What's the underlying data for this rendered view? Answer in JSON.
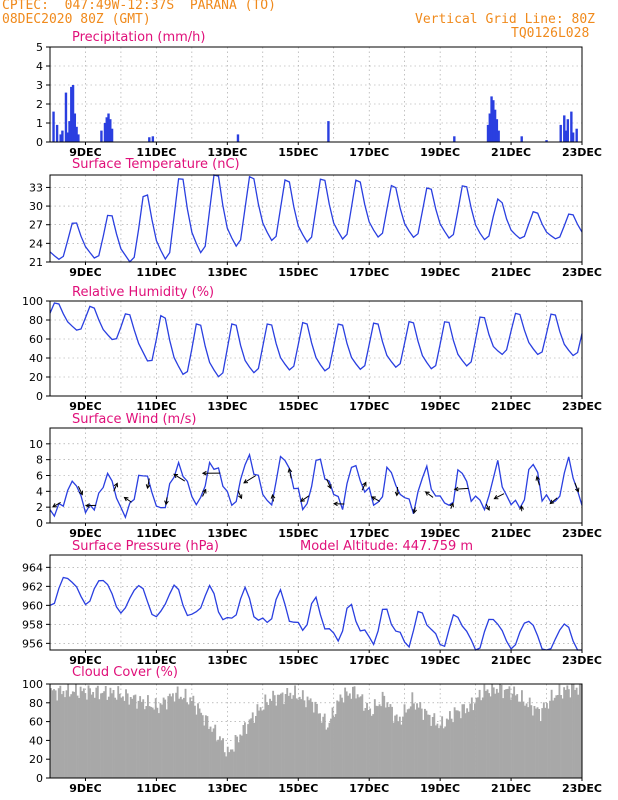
{
  "header": {
    "line1": "CPTEC:  047:49W-12:37S  PARANA (TO)",
    "line2": "08DEC2020 80Z (GMT)",
    "grid_note": "Vertical Grid Line: 80Z",
    "code": "TQ0126L028"
  },
  "colors": {
    "header": "#f08a1c",
    "title": "#e0107a",
    "line": "#2a3fe0",
    "cloud": "#a8a8a8",
    "grid": "#9a9a9a"
  },
  "x_ticks": [
    "9DEC",
    "11DEC",
    "13DEC",
    "15DEC",
    "17DEC",
    "19DEC",
    "21DEC",
    "23DEC"
  ],
  "chart_data": [
    {
      "type": "bar",
      "title": "Precipitation (mm/h)",
      "ylim": [
        0,
        5
      ],
      "yticks": [
        0,
        1,
        2,
        3,
        4,
        5
      ],
      "x_range_days": [
        8.0,
        23.0
      ],
      "bars": [
        [
          8.1,
          1.6
        ],
        [
          8.2,
          0.9
        ],
        [
          8.3,
          0.4
        ],
        [
          8.35,
          0.6
        ],
        [
          8.45,
          2.6
        ],
        [
          8.5,
          0.5
        ],
        [
          8.55,
          1.1
        ],
        [
          8.6,
          2.9
        ],
        [
          8.65,
          3.0
        ],
        [
          8.7,
          1.5
        ],
        [
          8.75,
          0.8
        ],
        [
          8.8,
          0.4
        ],
        [
          9.45,
          0.6
        ],
        [
          9.55,
          1.0
        ],
        [
          9.6,
          1.3
        ],
        [
          9.65,
          1.5
        ],
        [
          9.7,
          1.2
        ],
        [
          9.75,
          0.7
        ],
        [
          10.8,
          0.25
        ],
        [
          10.9,
          0.3
        ],
        [
          13.3,
          0.4
        ],
        [
          15.85,
          1.1
        ],
        [
          19.4,
          0.3
        ],
        [
          20.35,
          0.9
        ],
        [
          20.4,
          1.5
        ],
        [
          20.45,
          2.4
        ],
        [
          20.5,
          2.2
        ],
        [
          20.55,
          1.7
        ],
        [
          20.6,
          1.2
        ],
        [
          20.65,
          0.6
        ],
        [
          21.3,
          0.3
        ],
        [
          22.0,
          0.1
        ],
        [
          22.4,
          0.9
        ],
        [
          22.5,
          1.4
        ],
        [
          22.55,
          0.6
        ],
        [
          22.6,
          1.2
        ],
        [
          22.7,
          1.6
        ],
        [
          22.75,
          0.5
        ],
        [
          22.85,
          0.7
        ]
      ]
    },
    {
      "type": "line",
      "title": "Surface Temperature (nC)",
      "ylim": [
        21,
        35
      ],
      "yticks": [
        21,
        24,
        27,
        30,
        33
      ],
      "x_range_days": [
        8.0,
        23.0
      ],
      "amplitude": [
        2.5,
        3,
        4,
        6,
        6.5,
        6,
        5,
        5,
        5,
        4.5,
        4,
        4,
        4.5,
        2.5,
        2,
        2
      ],
      "mean": [
        23.5,
        24.5,
        24.5,
        26.5,
        28,
        28.5,
        29,
        28.5,
        29,
        29,
        28.5,
        28.5,
        28.5,
        27,
        26.5,
        26.5
      ],
      "peak_hour": 17
    },
    {
      "type": "line",
      "title": "Relative Humidity (%)",
      "ylim": [
        0,
        100
      ],
      "yticks": [
        0,
        20,
        40,
        60,
        80,
        100
      ],
      "x_range_days": [
        8.0,
        23.0
      ],
      "amplitude": [
        12,
        14,
        15,
        28,
        28,
        28,
        25,
        25,
        25,
        24,
        24,
        25,
        25,
        20,
        22,
        22
      ],
      "mean": [
        85,
        80,
        70,
        55,
        45,
        45,
        48,
        50,
        48,
        50,
        52,
        50,
        55,
        65,
        62,
        62
      ],
      "peak_hour": 5
    },
    {
      "type": "line",
      "title": "Surface Wind (m/s)",
      "ylim": [
        0,
        12
      ],
      "yticks": [
        0,
        2,
        4,
        6,
        8,
        10
      ],
      "x_range_days": [
        8.0,
        23.0
      ],
      "amplitude": [
        1.5,
        2,
        2.5,
        2.5,
        2.5,
        2.5,
        3,
        3,
        2.5,
        2,
        2,
        2,
        2,
        2.5,
        2.5,
        2.5
      ],
      "mean": [
        2.5,
        3.5,
        3.5,
        4,
        5,
        5,
        5.5,
        5,
        5,
        4.5,
        4,
        4,
        4,
        4,
        4.5,
        4.5
      ],
      "peak_hour": 15
    },
    {
      "type": "line",
      "title": "Surface Pressure (hPa)",
      "subtitle": "Model Altitude: 447.759 m",
      "ylim": [
        955.3,
        965.3
      ],
      "yticks": [
        956,
        958,
        960,
        962,
        964
      ],
      "x_range_days": [
        8.0,
        23.0
      ],
      "amplitude": [
        1.3,
        1.5,
        1.5,
        1.6,
        1.6,
        1.6,
        1.6,
        1.6,
        1.6,
        1.6,
        1.6,
        1.6,
        1.6,
        1.6,
        1.6,
        1.6
      ],
      "mean": [
        961.5,
        961.8,
        960.8,
        960.3,
        960.3,
        959.7,
        959.5,
        959.0,
        958.0,
        957.8,
        957.5,
        957.5,
        957.0,
        957.2,
        956.5,
        956.3
      ],
      "peak_hour": 12
    },
    {
      "type": "area",
      "title": "Cloud Cover (%)",
      "ylim": [
        0,
        100
      ],
      "yticks": [
        0,
        20,
        40,
        60,
        80,
        100
      ],
      "x_range_days": [
        8.0,
        23.0
      ],
      "profile": [
        [
          8.0,
          92
        ],
        [
          9.0,
          92
        ],
        [
          9.8,
          90
        ],
        [
          10.3,
          85
        ],
        [
          11.0,
          75
        ],
        [
          11.5,
          90
        ],
        [
          12.0,
          82
        ],
        [
          12.4,
          60
        ],
        [
          12.8,
          40
        ],
        [
          13.0,
          25
        ],
        [
          13.4,
          50
        ],
        [
          13.8,
          70
        ],
        [
          14.2,
          85
        ],
        [
          14.8,
          90
        ],
        [
          15.4,
          80
        ],
        [
          15.8,
          55
        ],
        [
          16.2,
          88
        ],
        [
          16.6,
          92
        ],
        [
          17.0,
          70
        ],
        [
          17.4,
          85
        ],
        [
          17.8,
          60
        ],
        [
          18.2,
          82
        ],
        [
          18.6,
          68
        ],
        [
          19.0,
          55
        ],
        [
          19.4,
          70
        ],
        [
          19.8,
          75
        ],
        [
          20.2,
          92
        ],
        [
          20.6,
          95
        ],
        [
          21.0,
          92
        ],
        [
          21.4,
          80
        ],
        [
          21.8,
          70
        ],
        [
          22.2,
          88
        ],
        [
          22.6,
          95
        ],
        [
          23.0,
          96
        ]
      ]
    }
  ]
}
